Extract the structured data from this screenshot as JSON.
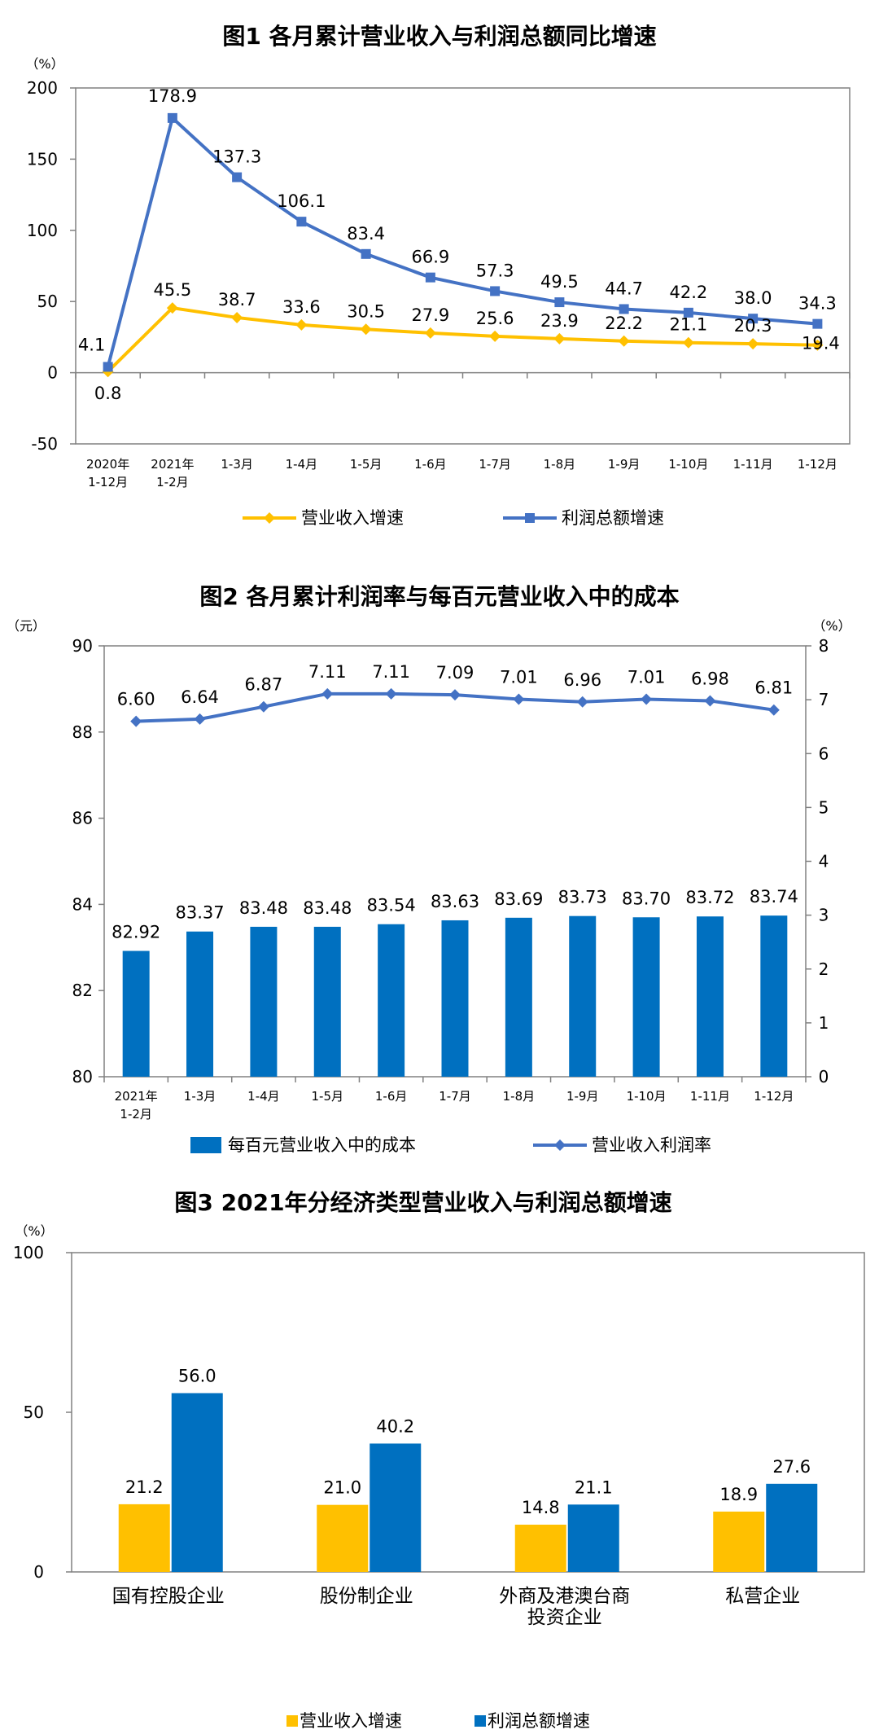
{
  "chart_data": [
    {
      "type": "line",
      "title": "图1  各月累计营业收入与利润总额同比增速",
      "ylabel": "（%）",
      "ylim": [
        -50,
        200
      ],
      "yticks": [
        200,
        150,
        100,
        50,
        0,
        -50
      ],
      "categories": [
        [
          "2020年",
          "1-12月"
        ],
        [
          "2021年",
          "1-2月"
        ],
        [
          "1-3月"
        ],
        [
          "1-4月"
        ],
        [
          "1-5月"
        ],
        [
          "1-6月"
        ],
        [
          "1-7月"
        ],
        [
          "1-8月"
        ],
        [
          "1-9月"
        ],
        [
          "1-10月"
        ],
        [
          "1-11月"
        ],
        [
          "1-12月"
        ]
      ],
      "series": [
        {
          "name": "营业收入增速",
          "color": "#FFC000",
          "marker": "diamond",
          "values": [
            0.8,
            45.5,
            38.7,
            33.6,
            30.5,
            27.9,
            25.6,
            23.9,
            22.2,
            21.1,
            20.3,
            19.4
          ],
          "labels": [
            "0.8",
            "45.5",
            "38.7",
            "33.6",
            "30.5",
            "27.9",
            "25.6",
            "23.9",
            "22.2",
            "21.1",
            "20.3",
            "19.4"
          ]
        },
        {
          "name": "利润总额增速",
          "color": "#4472C4",
          "marker": "square",
          "values": [
            4.1,
            178.9,
            137.3,
            106.1,
            83.4,
            66.9,
            57.3,
            49.5,
            44.7,
            42.2,
            38.0,
            34.3
          ],
          "labels": [
            "4.1",
            "178.9",
            "137.3",
            "106.1",
            "83.4",
            "66.9",
            "57.3",
            "49.5",
            "44.7",
            "42.2",
            "38.0",
            "34.3"
          ]
        }
      ],
      "legend": [
        "营业收入增速",
        "利润总额增速"
      ]
    },
    {
      "type": "bar+line",
      "title": "图2  各月累计利润率与每百元营业收入中的成本",
      "ylabel_left": "（元）",
      "ylabel_right": "（%）",
      "ylim_left": [
        80,
        90
      ],
      "ylim_right": [
        0,
        8
      ],
      "yticks_left": [
        90,
        88,
        86,
        84,
        82,
        80
      ],
      "yticks_right": [
        8,
        7,
        6,
        5,
        4,
        3,
        2,
        1,
        0
      ],
      "categories": [
        [
          "2021年",
          "1-2月"
        ],
        [
          "1-3月"
        ],
        [
          "1-4月"
        ],
        [
          "1-5月"
        ],
        [
          "1-6月"
        ],
        [
          "1-7月"
        ],
        [
          "1-8月"
        ],
        [
          "1-9月"
        ],
        [
          "1-10月"
        ],
        [
          "1-11月"
        ],
        [
          "1-12月"
        ]
      ],
      "series": [
        {
          "name": "每百元营业收入中的成本",
          "kind": "bar",
          "axis": "left",
          "color": "#0070C0",
          "values": [
            82.92,
            83.37,
            83.48,
            83.48,
            83.54,
            83.63,
            83.69,
            83.73,
            83.7,
            83.72,
            83.74
          ],
          "labels": [
            "82.92",
            "83.37",
            "83.48",
            "83.48",
            "83.54",
            "83.63",
            "83.69",
            "83.73",
            "83.70",
            "83.72",
            "83.74"
          ]
        },
        {
          "name": "营业收入利润率",
          "kind": "line",
          "axis": "right",
          "color": "#4472C4",
          "values": [
            6.6,
            6.64,
            6.87,
            7.11,
            7.11,
            7.09,
            7.01,
            6.96,
            7.01,
            6.98,
            6.81
          ],
          "labels": [
            "6.60",
            "6.64",
            "6.87",
            "7.11",
            "7.11",
            "7.09",
            "7.01",
            "6.96",
            "7.01",
            "6.98",
            "6.81"
          ]
        }
      ],
      "legend": [
        "每百元营业收入中的成本",
        "营业收入利润率"
      ]
    },
    {
      "type": "bar",
      "title": "图3  2021年分经济类型营业收入与利润总额增速",
      "ylabel": "（%）",
      "ylim": [
        0,
        100
      ],
      "yticks": [
        100,
        50,
        0
      ],
      "categories": [
        [
          "国有控股企业"
        ],
        [
          "股份制企业"
        ],
        [
          "外商及港澳台商",
          "投资企业"
        ],
        [
          "私营企业"
        ]
      ],
      "series": [
        {
          "name": "营业收入增速",
          "color": "#FFC000",
          "values": [
            21.2,
            21.0,
            14.8,
            18.9
          ],
          "labels": [
            "21.2",
            "21.0",
            "14.8",
            "18.9"
          ]
        },
        {
          "name": "利润总额增速",
          "color": "#0070C0",
          "values": [
            56.0,
            40.2,
            21.1,
            27.6
          ],
          "labels": [
            "56.0",
            "40.2",
            "21.1",
            "27.6"
          ]
        }
      ],
      "legend": [
        "营业收入增速",
        "利润总额增速"
      ]
    }
  ]
}
